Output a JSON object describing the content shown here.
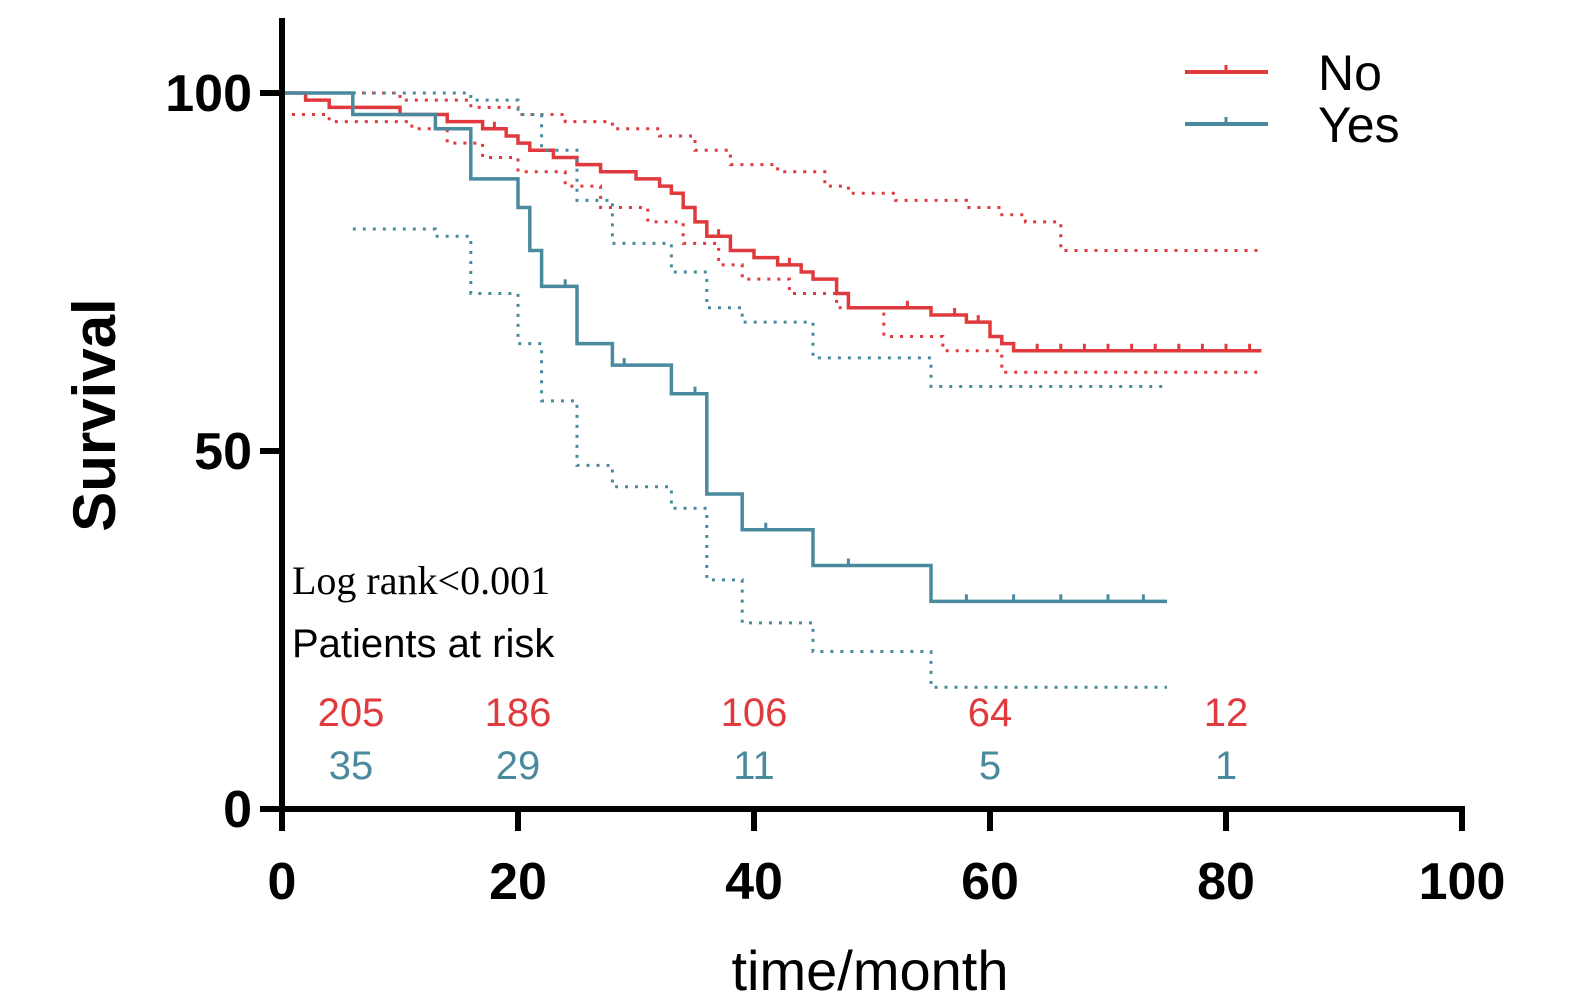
{
  "chart_data": {
    "type": "line",
    "xlabel": "time/month",
    "ylabel": "Survival",
    "xlim": [
      0,
      100
    ],
    "ylim": [
      0,
      100
    ],
    "x_ticks": [
      0,
      20,
      40,
      60,
      80,
      100
    ],
    "y_ticks": [
      0,
      50,
      100
    ],
    "x_tick_labels": [
      "0",
      "20",
      "40",
      "60",
      "80",
      "100"
    ],
    "y_tick_labels": [
      "0",
      "50",
      "100"
    ],
    "grid": false,
    "legend_position": "top-right",
    "colors": {
      "no": "#e03a3e",
      "yes": "#4a8a9e"
    },
    "annotations": {
      "log_rank": "Log rank<0.001",
      "patients_at_risk": "Patients at risk"
    },
    "series": [
      {
        "name": "No",
        "color": "#e03a3e",
        "steps": [
          [
            0,
            100
          ],
          [
            2,
            99
          ],
          [
            4,
            98
          ],
          [
            10,
            97
          ],
          [
            14,
            96
          ],
          [
            17,
            95
          ],
          [
            19,
            94
          ],
          [
            20,
            93
          ],
          [
            21,
            92
          ],
          [
            23,
            91
          ],
          [
            25,
            90
          ],
          [
            27,
            89
          ],
          [
            30,
            88
          ],
          [
            32,
            87
          ],
          [
            33,
            86
          ],
          [
            34,
            84
          ],
          [
            35,
            82
          ],
          [
            36,
            80
          ],
          [
            38,
            78
          ],
          [
            40,
            77
          ],
          [
            42,
            76
          ],
          [
            44,
            75
          ],
          [
            45,
            74
          ],
          [
            47,
            72
          ],
          [
            48,
            70
          ],
          [
            52,
            70
          ],
          [
            55,
            69
          ],
          [
            58,
            68
          ],
          [
            60,
            66
          ],
          [
            61,
            65
          ],
          [
            62,
            64
          ],
          [
            83,
            64
          ]
        ],
        "ci_upper": [
          [
            0,
            100
          ],
          [
            6,
            100
          ],
          [
            10,
            99
          ],
          [
            16,
            98
          ],
          [
            20,
            97
          ],
          [
            24,
            96
          ],
          [
            28,
            95
          ],
          [
            32,
            94
          ],
          [
            35,
            92
          ],
          [
            38,
            90
          ],
          [
            42,
            89
          ],
          [
            46,
            87
          ],
          [
            48,
            86
          ],
          [
            52,
            85
          ],
          [
            58,
            84
          ],
          [
            61,
            83
          ],
          [
            63,
            82
          ],
          [
            66,
            78
          ],
          [
            83,
            78
          ]
        ],
        "ci_lower": [
          [
            0,
            97
          ],
          [
            4,
            96
          ],
          [
            11,
            95
          ],
          [
            14,
            93
          ],
          [
            17,
            91
          ],
          [
            20,
            89
          ],
          [
            24,
            87
          ],
          [
            27,
            84
          ],
          [
            31,
            82
          ],
          [
            34,
            79
          ],
          [
            37,
            76
          ],
          [
            39,
            74
          ],
          [
            43,
            72
          ],
          [
            47,
            70
          ],
          [
            51,
            66
          ],
          [
            56,
            64
          ],
          [
            61,
            61
          ],
          [
            83,
            61
          ]
        ],
        "censor_x": [
          18,
          37,
          40,
          43,
          53,
          55,
          57,
          59,
          64,
          66,
          68,
          70,
          72,
          74,
          76,
          78,
          80,
          82
        ],
        "at_risk": [
          205,
          186,
          106,
          64,
          12
        ]
      },
      {
        "name": "Yes",
        "color": "#4a8a9e",
        "steps": [
          [
            0,
            100
          ],
          [
            6,
            97
          ],
          [
            13,
            95
          ],
          [
            16,
            88
          ],
          [
            20,
            84
          ],
          [
            21,
            78
          ],
          [
            22,
            73
          ],
          [
            25,
            65
          ],
          [
            28,
            62
          ],
          [
            33,
            58
          ],
          [
            36,
            44
          ],
          [
            39,
            39
          ],
          [
            45,
            34
          ],
          [
            55,
            29
          ],
          [
            75,
            29
          ]
        ],
        "ci_upper": [
          [
            6,
            100
          ],
          [
            16,
            99
          ],
          [
            20,
            97
          ],
          [
            22,
            92
          ],
          [
            25,
            85
          ],
          [
            28,
            79
          ],
          [
            33,
            75
          ],
          [
            36,
            70
          ],
          [
            39,
            68
          ],
          [
            45,
            63
          ],
          [
            55,
            59
          ],
          [
            75,
            59
          ]
        ],
        "ci_lower": [
          [
            6,
            81
          ],
          [
            13,
            80
          ],
          [
            16,
            72
          ],
          [
            20,
            65
          ],
          [
            22,
            57
          ],
          [
            25,
            48
          ],
          [
            28,
            45
          ],
          [
            33,
            42
          ],
          [
            36,
            32
          ],
          [
            39,
            26
          ],
          [
            45,
            22
          ],
          [
            55,
            17
          ],
          [
            75,
            17
          ]
        ],
        "censor_x": [
          24,
          29,
          35,
          41,
          48,
          58,
          62,
          66,
          70,
          73
        ],
        "at_risk": [
          35,
          29,
          11,
          5,
          1
        ]
      }
    ],
    "at_risk_times": [
      5,
      20,
      40,
      60,
      80
    ]
  }
}
